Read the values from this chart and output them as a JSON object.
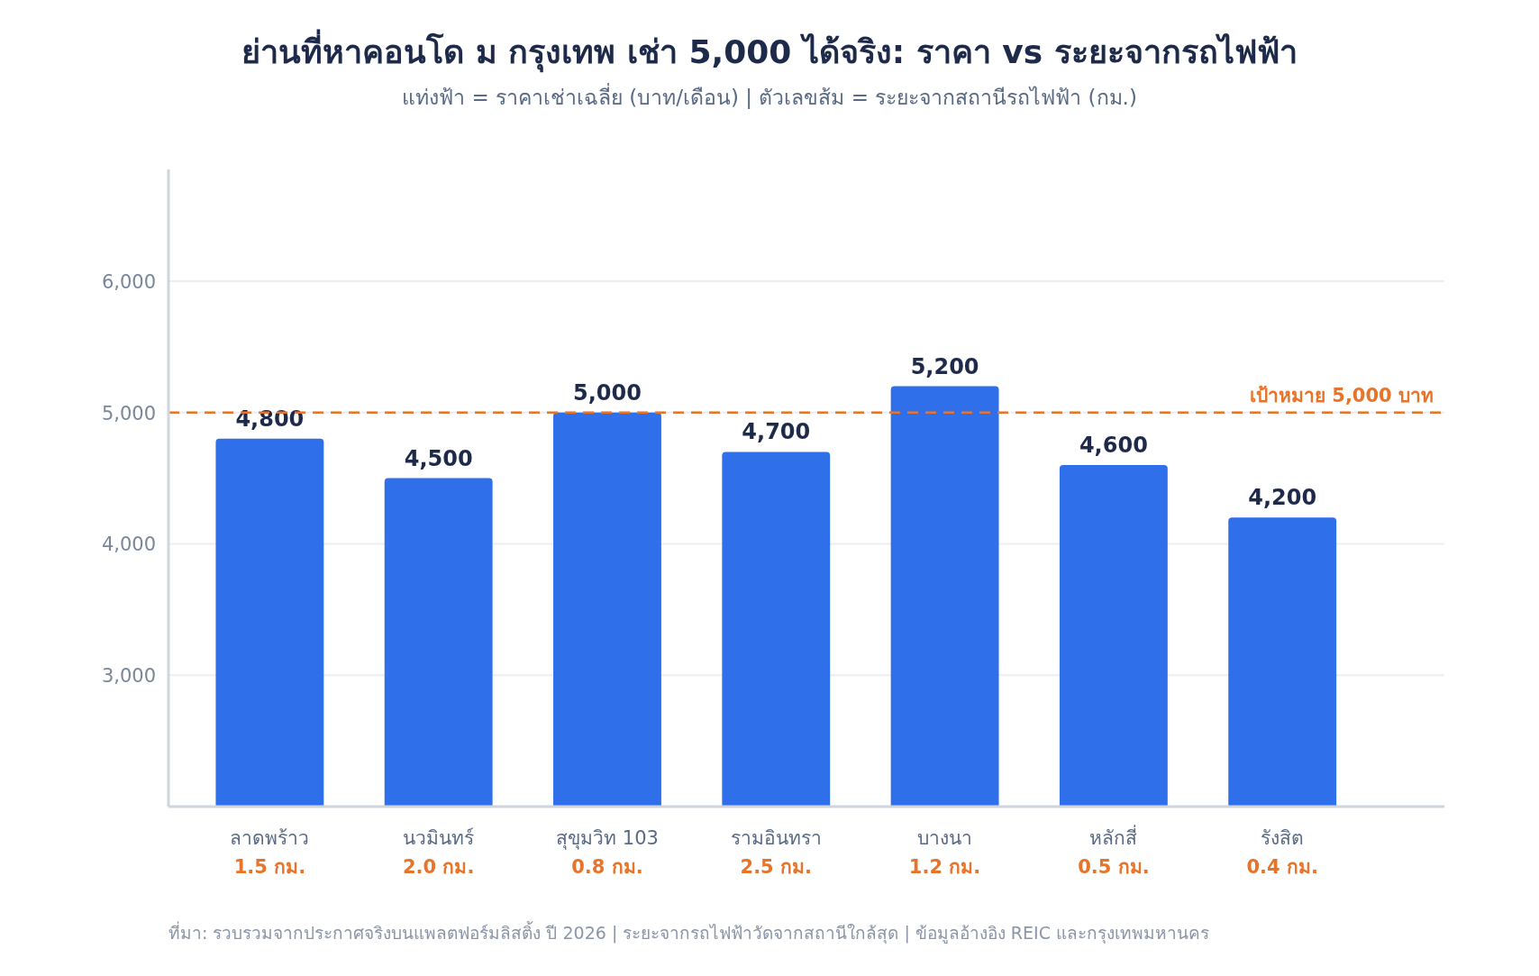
{
  "chart_data": {
    "type": "bar",
    "title": "ย่านที่หาคอนโด ม กรุงเทพ เช่า 5,000 ได้จริง: ราคา vs ระยะจากรถไฟฟ้า",
    "subtitle": "แท่งฟ้า = ราคาเช่าเฉลี่ย (บาท/เดือน) | ตัวเลขส้ม = ระยะจากสถานีรถไฟฟ้า (กม.)",
    "categories": [
      "ลาดพร้าว",
      "นวมินทร์",
      "สุขุมวิท 103",
      "รามอินทรา",
      "บางนา",
      "หลักสี่",
      "รังสิต"
    ],
    "values": [
      4800,
      4500,
      5000,
      4700,
      5200,
      4600,
      4200
    ],
    "color": "#2f6fea",
    "value_labels": [
      "4,800",
      "4,500",
      "5,000",
      "4,700",
      "5,200",
      "4,600",
      "4,200"
    ],
    "ylim": [
      2000,
      6850
    ],
    "yticks": [
      {
        "value": 3000,
        "label": "3,000"
      },
      {
        "value": 4000,
        "label": "4,000"
      },
      {
        "value": 5000,
        "label": "5,000"
      },
      {
        "value": 6000,
        "label": "6,000"
      }
    ],
    "grid": "y",
    "ref_lines": [
      {
        "axis": "y",
        "value": 5000,
        "label": "เป้าหมาย 5,000 บาท",
        "color": "#e8742a",
        "line_style": "dashed"
      }
    ],
    "annotations": [
      "1.5 กม.",
      "2.0 กม.",
      "0.8 กม.",
      "2.5 กม.",
      "1.2 กม.",
      "0.5 กม.",
      "0.4 กม.",
      "ที่มา: รวบรวมจากประกาศจริงบนแพลตฟอร์มลิสติ้ง ปี 2026 | ระยะจากรถไฟฟ้าวัดจากสถานีใกล้สุด | ข้อมูลอ้างอิง REIC และกรุงเทพมหานคร"
    ]
  }
}
